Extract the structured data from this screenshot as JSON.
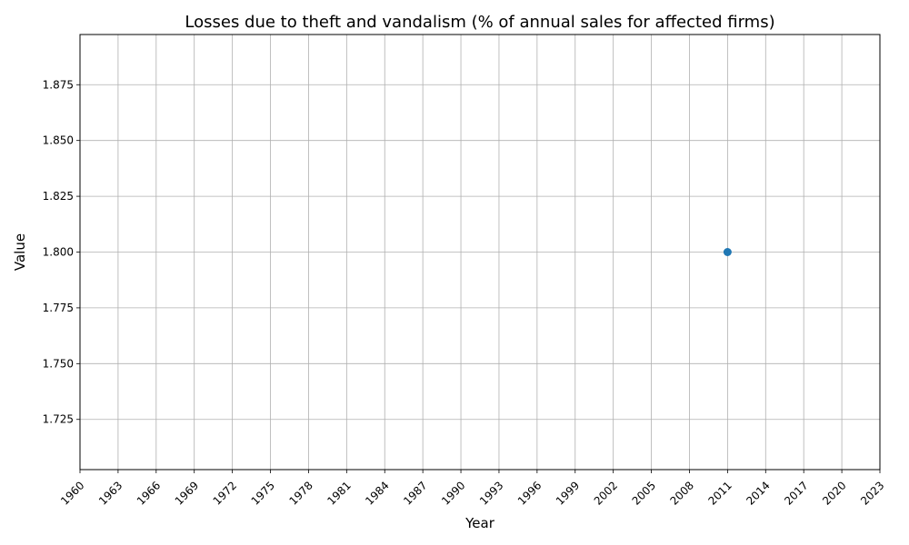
{
  "chart_data": {
    "type": "line",
    "title": "Losses due to theft and vandalism (% of annual sales for affected firms)",
    "xlabel": "Year",
    "ylabel": "Value",
    "xlim": [
      1960,
      2023
    ],
    "ylim": [
      1.7025,
      1.8975
    ],
    "x_ticks": [
      "1960",
      "1963",
      "1966",
      "1969",
      "1972",
      "1975",
      "1978",
      "1981",
      "1984",
      "1987",
      "1990",
      "1993",
      "1996",
      "1999",
      "2002",
      "2005",
      "2008",
      "2011",
      "2014",
      "2017",
      "2020",
      "2023"
    ],
    "y_ticks": [
      "1.725",
      "1.750",
      "1.775",
      "1.800",
      "1.825",
      "1.850",
      "1.875"
    ],
    "grid": true,
    "series": [
      {
        "color": "#1f77b4",
        "marker": "circle",
        "x": [
          2011
        ],
        "y": [
          1.8
        ]
      }
    ]
  }
}
